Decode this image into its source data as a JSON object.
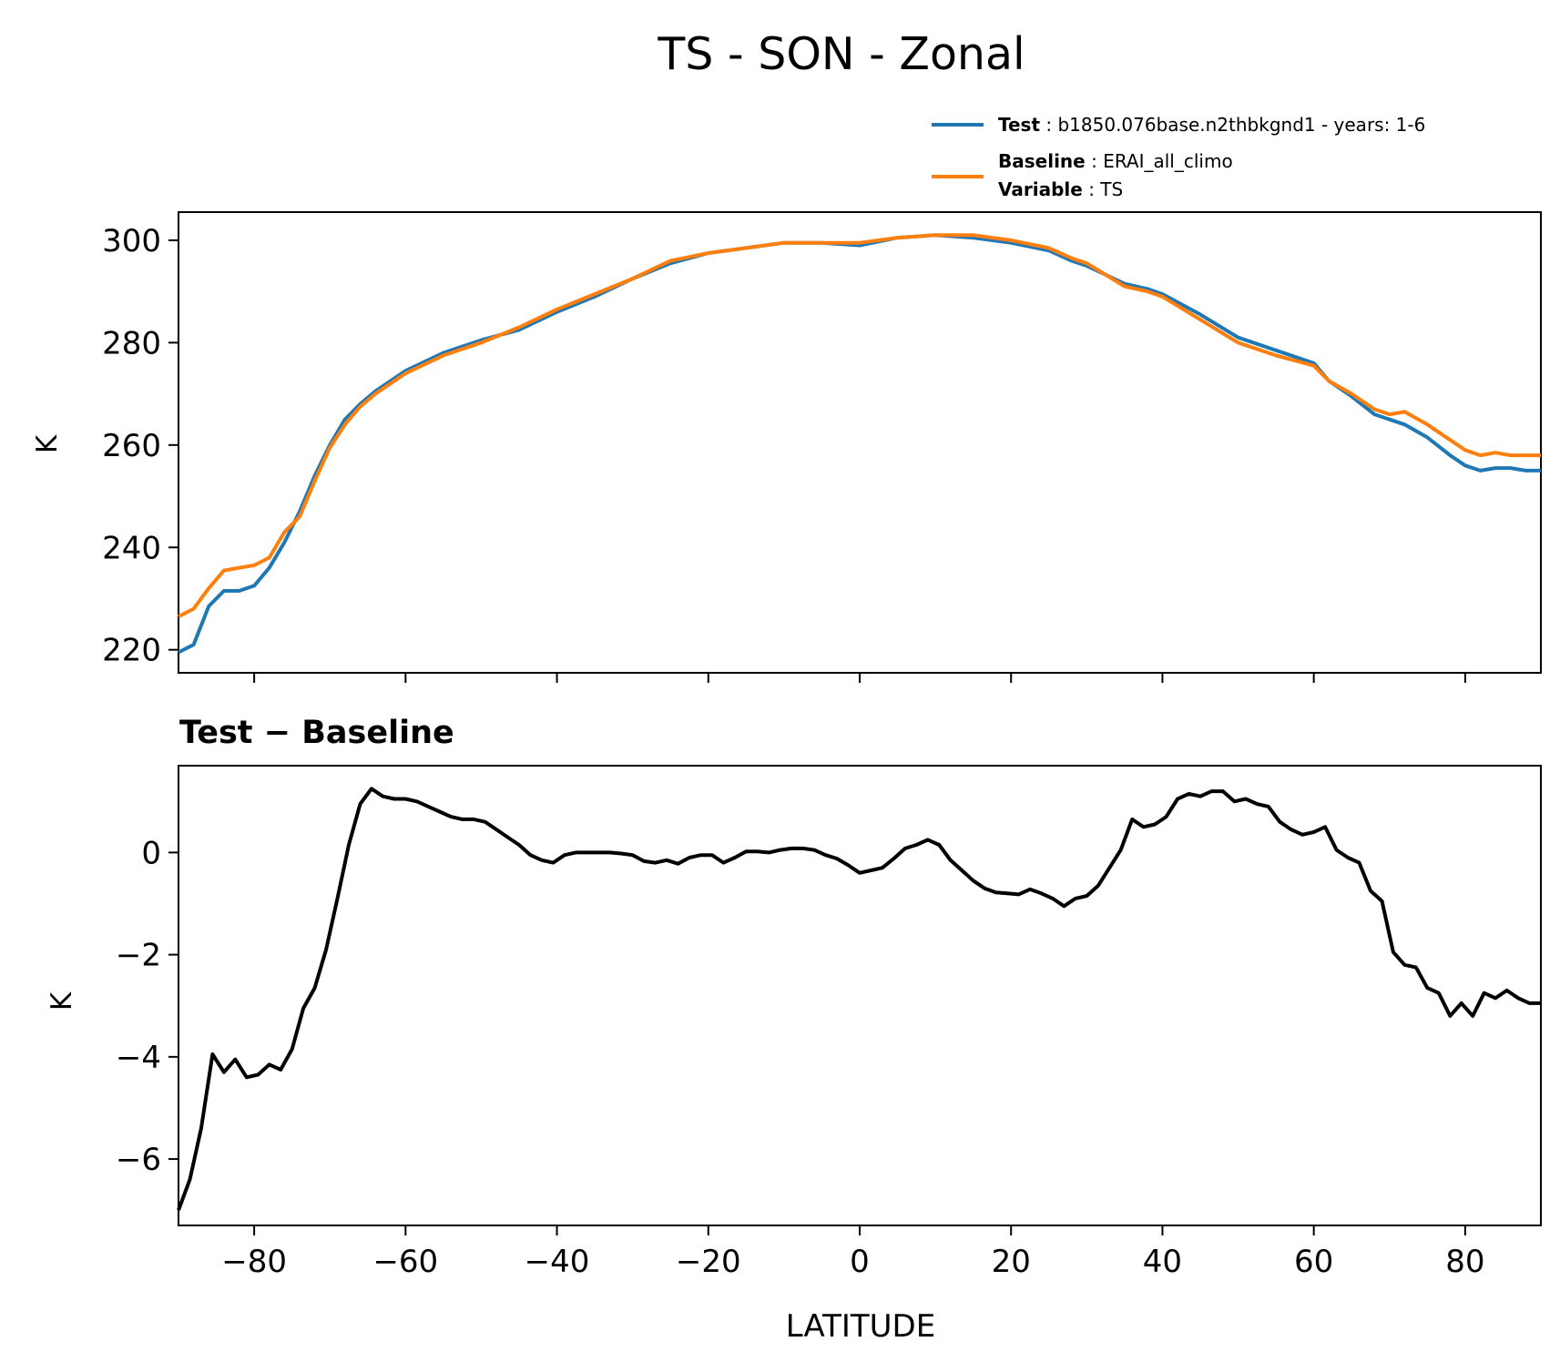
{
  "figure": {
    "title": "TS - SON - Zonal",
    "bottom_panel_title": "Test − Baseline"
  },
  "legend": {
    "test_label": "Test",
    "test_value": "b1850.076base.n2thbkgnd1 - years: 1-6",
    "baseline_label": "Baseline",
    "baseline_value": "ERAI_all_climo",
    "variable_label": "Variable",
    "variable_value": "TS"
  },
  "colors": {
    "test": "#1f77b4",
    "baseline": "#ff7f0e",
    "difference": "#000000"
  },
  "chart_data": [
    {
      "type": "line",
      "title": "",
      "xlabel": "",
      "ylabel": "K",
      "xlim": [
        -90,
        90
      ],
      "ylim": [
        215.5,
        305.5
      ],
      "xticks": [
        -80,
        -60,
        -40,
        -20,
        0,
        20,
        40,
        60,
        80
      ],
      "xtick_labels_shown": false,
      "yticks": [
        220,
        240,
        260,
        280,
        300
      ],
      "ytick_labels": [
        "220",
        "240",
        "260",
        "280",
        "300"
      ],
      "grid": false,
      "legend_position": "above-right",
      "x": [
        -90,
        -88,
        -86,
        -84,
        -82,
        -80,
        -78,
        -76,
        -74,
        -72,
        -70,
        -68,
        -66,
        -64,
        -62,
        -60,
        -55,
        -50,
        -45,
        -40,
        -35,
        -30,
        -25,
        -20,
        -15,
        -10,
        -5,
        0,
        5,
        10,
        15,
        20,
        25,
        28,
        30,
        35,
        38,
        40,
        45,
        50,
        55,
        60,
        62,
        65,
        68,
        70,
        72,
        75,
        78,
        80,
        82,
        84,
        86,
        88,
        90
      ],
      "series": [
        {
          "name": "Test",
          "values": [
            219.5,
            221,
            228.5,
            231.5,
            231.5,
            232.5,
            236,
            241,
            247,
            254,
            260,
            265,
            268,
            270.5,
            272.5,
            274.5,
            278,
            280.5,
            282.5,
            286,
            289,
            292.5,
            295.5,
            297.5,
            298.5,
            299.5,
            299.5,
            299,
            300.5,
            301,
            300.5,
            299.5,
            298,
            296,
            295,
            291.5,
            290.5,
            289.5,
            285.5,
            281,
            278.5,
            276,
            272.5,
            269.5,
            266,
            265,
            264,
            261.5,
            258,
            256,
            255,
            255.5,
            255.5,
            255,
            255
          ]
        },
        {
          "name": "Baseline",
          "values": [
            226.5,
            228,
            232,
            235.5,
            236,
            236.5,
            238,
            243,
            246,
            253,
            259.5,
            264,
            267.5,
            270,
            272,
            274,
            277.5,
            280,
            283,
            286.5,
            289.5,
            292.5,
            296,
            297.5,
            298.5,
            299.5,
            299.5,
            299.5,
            300.5,
            301,
            301,
            300,
            298.5,
            296.5,
            295.5,
            291,
            290,
            289,
            284.5,
            280,
            277.5,
            275.5,
            272.5,
            270,
            267,
            266,
            266.5,
            264,
            261,
            259,
            258,
            258.5,
            258,
            258,
            258
          ]
        }
      ]
    },
    {
      "type": "line",
      "title": "Test − Baseline",
      "xlabel": "LATITUDE",
      "ylabel": "K",
      "xlim": [
        -90,
        90
      ],
      "ylim": [
        -7.3,
        1.7
      ],
      "xticks": [
        -80,
        -60,
        -40,
        -20,
        0,
        20,
        40,
        60,
        80
      ],
      "xtick_labels": [
        "−80",
        "−60",
        "−40",
        "−20",
        "0",
        "20",
        "40",
        "60",
        "80"
      ],
      "yticks": [
        -6,
        -4,
        -2,
        0
      ],
      "ytick_labels": [
        "−6",
        "−4",
        "−2",
        "0"
      ],
      "grid": false,
      "x": [
        -90,
        -88.5,
        -87,
        -85.5,
        -84,
        -82.5,
        -81,
        -79.5,
        -78,
        -76.5,
        -75,
        -73.5,
        -72,
        -70.5,
        -69,
        -67.5,
        -66,
        -64.5,
        -63,
        -61.5,
        -60,
        -58.5,
        -57,
        -55.5,
        -54,
        -52.5,
        -51,
        -49.5,
        -48,
        -46.5,
        -45,
        -43.5,
        -42,
        -40.5,
        -39,
        -37.5,
        -36,
        -34.5,
        -33,
        -31.5,
        -30,
        -28.5,
        -27,
        -25.5,
        -24,
        -22.5,
        -21,
        -19.5,
        -18,
        -16.5,
        -15,
        -13.5,
        -12,
        -10.5,
        -9,
        -7.5,
        -6,
        -4.5,
        -3,
        -1.5,
        0,
        1.5,
        3,
        4.5,
        6,
        7.5,
        9,
        10.5,
        12,
        13.5,
        15,
        16.5,
        18,
        19.5,
        21,
        22.5,
        24,
        25.5,
        27,
        28.5,
        30,
        31.5,
        33,
        34.5,
        36,
        37.5,
        39,
        40.5,
        42,
        43.5,
        45,
        46.5,
        48,
        49.5,
        51,
        52.5,
        54,
        55.5,
        57,
        58.5,
        60,
        61.5,
        63,
        64.5,
        66,
        67.5,
        69,
        70.5,
        72,
        73.5,
        75,
        76.5,
        78,
        79.5,
        81,
        82.5,
        84,
        85.5,
        87,
        88.5,
        90
      ],
      "series": [
        {
          "name": "",
          "values": [
            -7.0,
            -6.4,
            -5.4,
            -3.95,
            -4.3,
            -4.05,
            -4.4,
            -4.35,
            -4.15,
            -4.25,
            -3.85,
            -3.05,
            -2.65,
            -1.9,
            -0.9,
            0.15,
            0.95,
            1.25,
            1.1,
            1.05,
            1.05,
            1.0,
            0.9,
            0.8,
            0.7,
            0.65,
            0.65,
            0.6,
            0.45,
            0.3,
            0.15,
            -0.05,
            -0.15,
            -0.2,
            -0.05,
            0.0,
            0.0,
            0.0,
            0.0,
            -0.02,
            -0.05,
            -0.17,
            -0.2,
            -0.15,
            -0.22,
            -0.1,
            -0.05,
            -0.05,
            -0.2,
            -0.1,
            0.02,
            0.02,
            0.0,
            0.05,
            0.08,
            0.08,
            0.05,
            -0.05,
            -0.12,
            -0.25,
            -0.4,
            -0.35,
            -0.3,
            -0.12,
            0.08,
            0.15,
            0.25,
            0.15,
            -0.15,
            -0.35,
            -0.55,
            -0.7,
            -0.78,
            -0.8,
            -0.82,
            -0.72,
            -0.8,
            -0.9,
            -1.05,
            -0.9,
            -0.85,
            -0.65,
            -0.3,
            0.05,
            0.65,
            0.5,
            0.55,
            0.7,
            1.05,
            1.15,
            1.1,
            1.2,
            1.2,
            1.0,
            1.05,
            0.95,
            0.9,
            0.6,
            0.45,
            0.35,
            0.4,
            0.5,
            0.05,
            -0.1,
            -0.2,
            -0.75,
            -0.95,
            -1.95,
            -2.2,
            -2.25,
            -2.65,
            -2.75,
            -3.2,
            -2.95,
            -3.2,
            -2.75,
            -2.85,
            -2.7,
            -2.85,
            -2.95,
            -2.95
          ]
        }
      ]
    }
  ]
}
